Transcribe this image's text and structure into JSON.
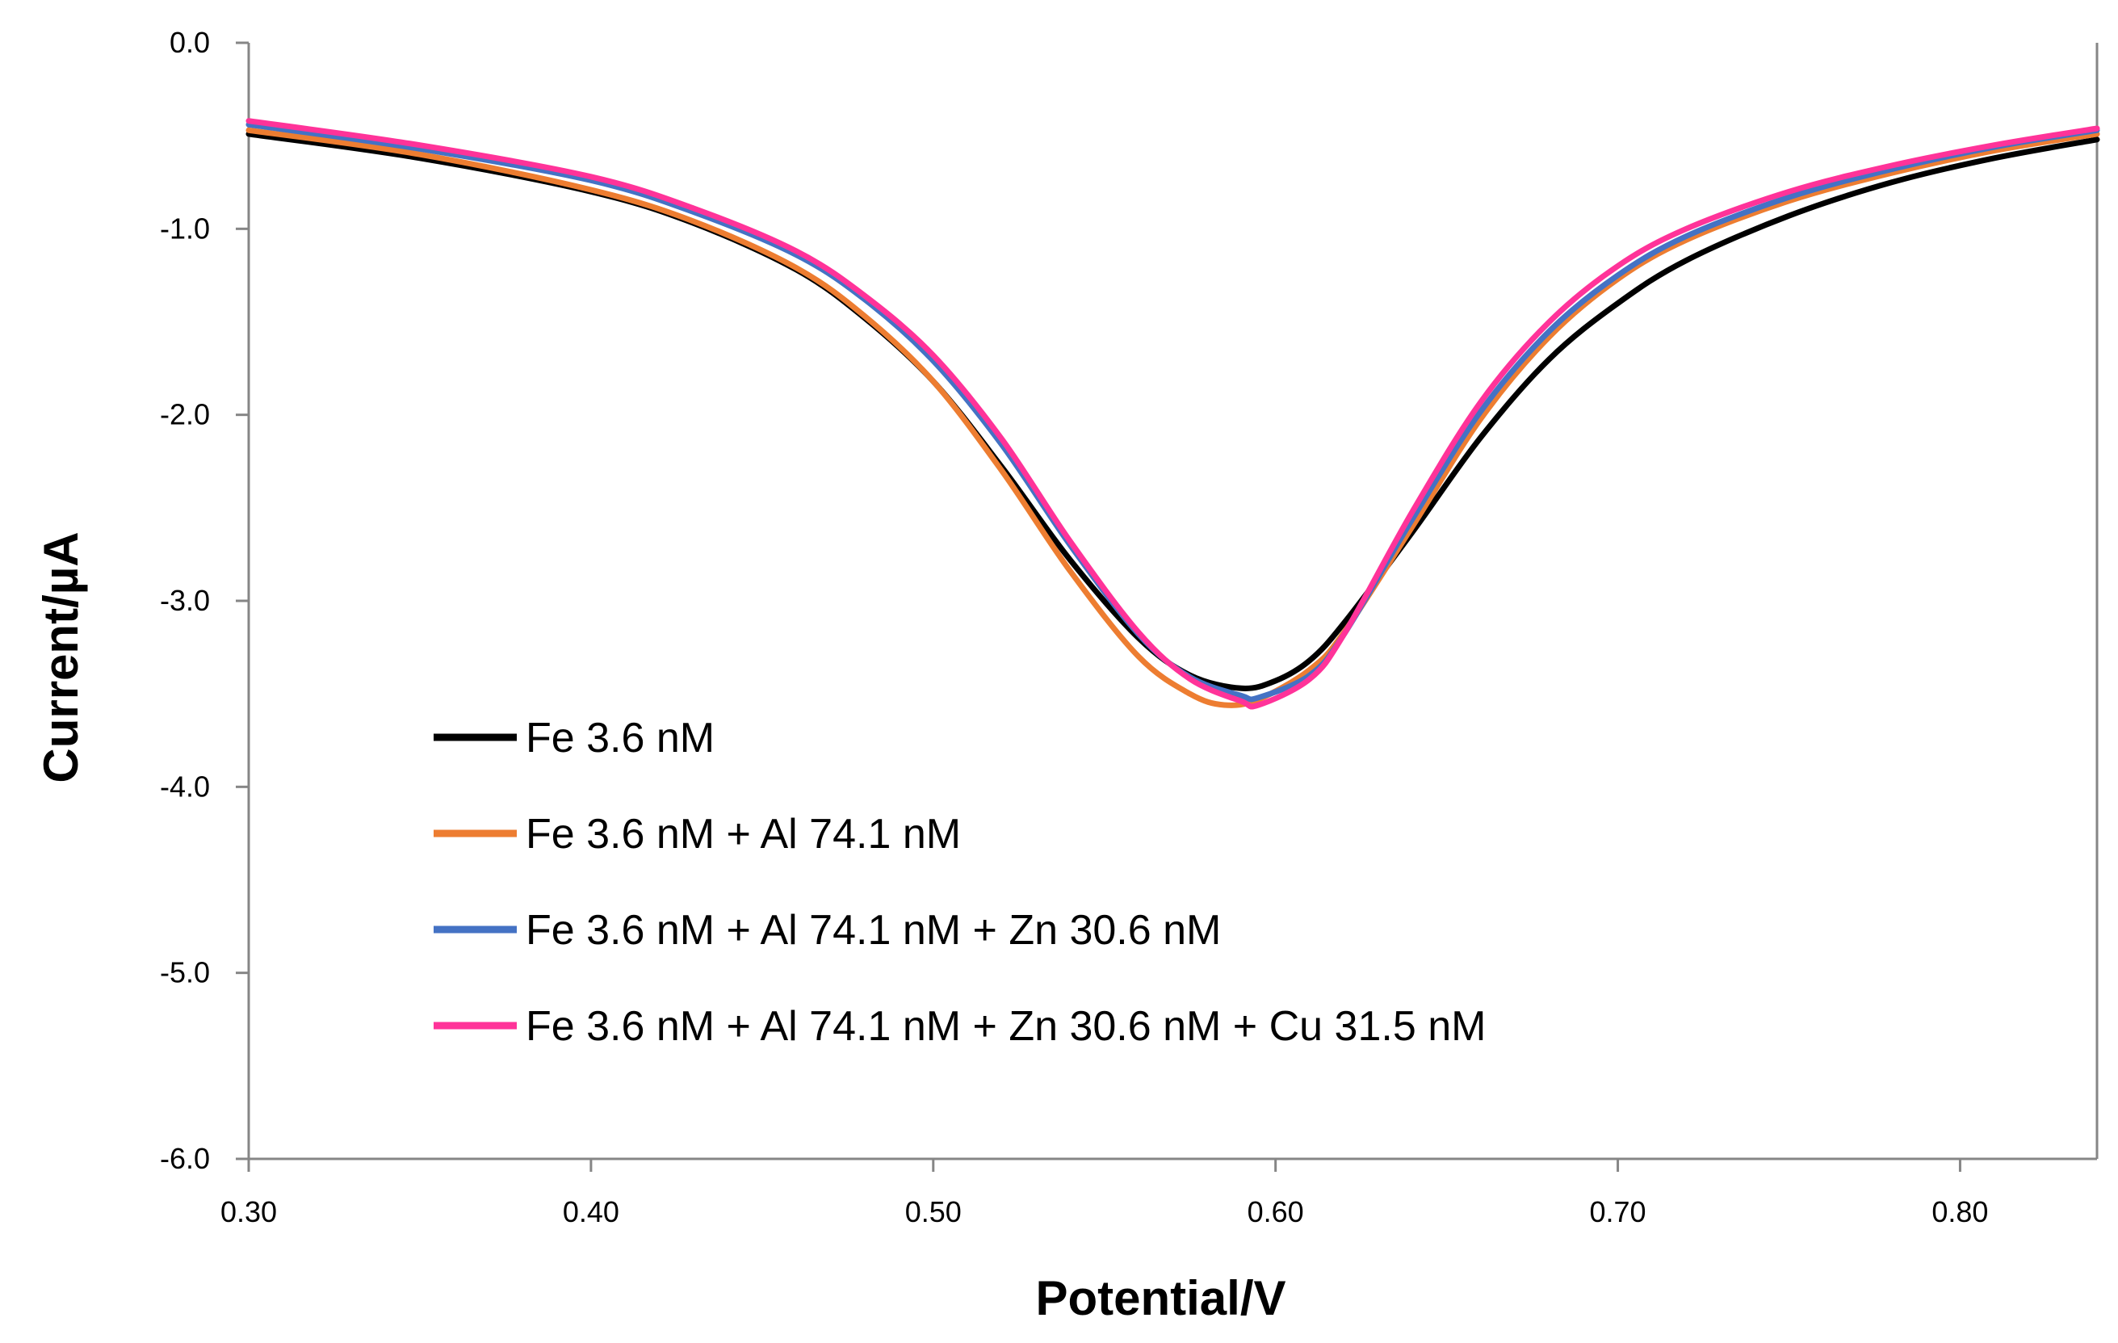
{
  "chart_data": {
    "type": "line",
    "title": "",
    "xlabel": "Potential/V",
    "ylabel": "Current/µA",
    "xlim": [
      0.3,
      0.84
    ],
    "ylim": [
      -6.0,
      0.0
    ],
    "xticks": [
      0.3,
      0.4,
      0.5,
      0.6,
      0.7,
      0.8
    ],
    "xtick_labels": [
      "0.30",
      "0.40",
      "0.50",
      "0.60",
      "0.70",
      "0.80"
    ],
    "yticks": [
      0.0,
      -1.0,
      -2.0,
      -3.0,
      -4.0,
      -5.0,
      -6.0
    ],
    "ytick_labels": [
      "0.0",
      "-1.0",
      "-2.0",
      "-3.0",
      "-4.0",
      "-5.0",
      "-6.0"
    ],
    "grid": false,
    "legend_position": "bottom-left",
    "series": [
      {
        "name": "Fe 3.6 nM",
        "color": "#000000",
        "x": [
          0.3,
          0.35,
          0.4,
          0.43,
          0.46,
          0.48,
          0.5,
          0.52,
          0.54,
          0.56,
          0.575,
          0.59,
          0.6,
          0.61,
          0.62,
          0.64,
          0.66,
          0.68,
          0.7,
          0.72,
          0.75,
          0.78,
          0.81,
          0.84
        ],
        "y": [
          -0.49,
          -0.62,
          -0.8,
          -0.97,
          -1.22,
          -1.48,
          -1.82,
          -2.28,
          -2.78,
          -3.2,
          -3.4,
          -3.47,
          -3.43,
          -3.32,
          -3.12,
          -2.63,
          -2.12,
          -1.7,
          -1.4,
          -1.17,
          -0.93,
          -0.75,
          -0.62,
          -0.52
        ]
      },
      {
        "name": "Fe 3.6 nM + Al 74.1 nM",
        "color": "#ED7D31",
        "x": [
          0.3,
          0.35,
          0.4,
          0.43,
          0.46,
          0.48,
          0.5,
          0.52,
          0.54,
          0.56,
          0.575,
          0.585,
          0.595,
          0.61,
          0.62,
          0.64,
          0.66,
          0.68,
          0.7,
          0.72,
          0.75,
          0.78,
          0.81,
          0.84
        ],
        "y": [
          -0.47,
          -0.6,
          -0.79,
          -0.96,
          -1.21,
          -1.47,
          -1.82,
          -2.3,
          -2.84,
          -3.3,
          -3.5,
          -3.56,
          -3.53,
          -3.37,
          -3.17,
          -2.6,
          -2.02,
          -1.58,
          -1.27,
          -1.06,
          -0.85,
          -0.7,
          -0.58,
          -0.49
        ]
      },
      {
        "name": "Fe 3.6 nM + Al 74.1 nM + Zn 30.6 nM",
        "color": "#4472C4",
        "x": [
          0.3,
          0.35,
          0.4,
          0.43,
          0.46,
          0.48,
          0.5,
          0.52,
          0.54,
          0.56,
          0.575,
          0.59,
          0.595,
          0.61,
          0.62,
          0.64,
          0.66,
          0.68,
          0.7,
          0.72,
          0.75,
          0.78,
          0.81,
          0.84
        ],
        "y": [
          -0.44,
          -0.57,
          -0.74,
          -0.91,
          -1.14,
          -1.38,
          -1.71,
          -2.16,
          -2.7,
          -3.18,
          -3.41,
          -3.51,
          -3.52,
          -3.4,
          -3.18,
          -2.56,
          -1.98,
          -1.55,
          -1.25,
          -1.04,
          -0.83,
          -0.68,
          -0.56,
          -0.47
        ]
      },
      {
        "name": "Fe 3.6 nM + Al 74.1 nM + Zn 30.6 nM + Cu 31.5 nM",
        "color": "#FF3399",
        "x": [
          0.3,
          0.35,
          0.4,
          0.43,
          0.46,
          0.48,
          0.5,
          0.52,
          0.54,
          0.56,
          0.575,
          0.59,
          0.595,
          0.61,
          0.62,
          0.64,
          0.66,
          0.68,
          0.7,
          0.72,
          0.75,
          0.78,
          0.81,
          0.84
        ],
        "y": [
          -0.42,
          -0.55,
          -0.72,
          -0.89,
          -1.12,
          -1.36,
          -1.68,
          -2.13,
          -2.68,
          -3.17,
          -3.42,
          -3.54,
          -3.56,
          -3.42,
          -3.18,
          -2.52,
          -1.93,
          -1.5,
          -1.2,
          -1.0,
          -0.8,
          -0.66,
          -0.55,
          -0.46
        ]
      }
    ]
  }
}
